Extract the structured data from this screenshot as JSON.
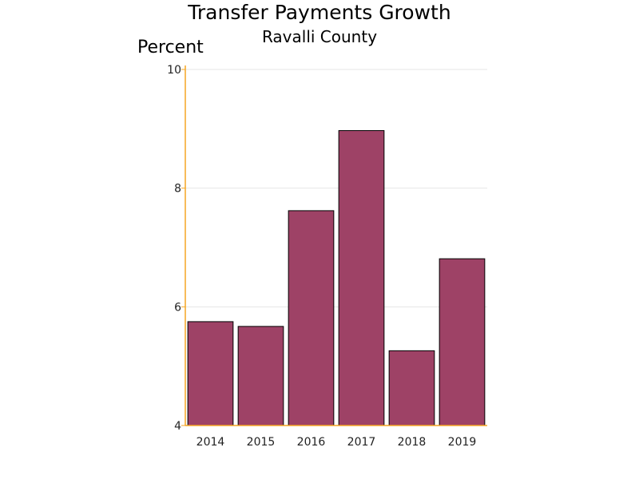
{
  "chart_data": {
    "type": "bar",
    "title": "Transfer Payments Growth",
    "subtitle": "Ravalli County",
    "ylabel": "Percent",
    "xlabel": "",
    "categories": [
      "2014",
      "2015",
      "2016",
      "2017",
      "2018",
      "2019"
    ],
    "values": [
      5.75,
      5.67,
      7.62,
      8.97,
      5.26,
      6.81
    ],
    "ylim": [
      4,
      10
    ],
    "yticks": [
      "4",
      "6",
      "8",
      "10"
    ],
    "grid": true,
    "legend": "none",
    "colors": {
      "bar_fill": "#9E4266",
      "bar_stroke": "#000000",
      "axis_line": "#F5A623",
      "grid": "#E6E6E6"
    }
  }
}
